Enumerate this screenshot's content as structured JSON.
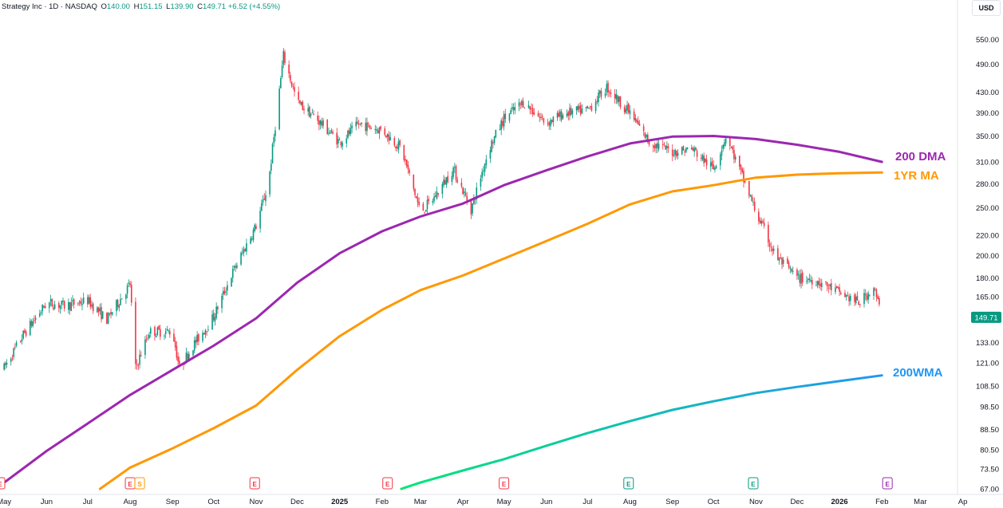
{
  "header": {
    "symbol": "Strategy Inc · 1D · NASDAQ",
    "o_label": "O",
    "o_value": "140.00",
    "h_label": "H",
    "h_value": "151.15",
    "l_label": "L",
    "l_value": "139.90",
    "c_label": "C",
    "c_value": "149.71",
    "change": "+6.52 (+4.55%)"
  },
  "currency_button": "USD",
  "colors": {
    "up": "#089981",
    "down": "#f23645",
    "dma200": "#9c27b0",
    "ma1yr": "#ff9800",
    "wma200_start": "#00e676",
    "wma200_end": "#2196f3",
    "price_tag": "#089981"
  },
  "chart_data": {
    "type": "line",
    "title": "Strategy Inc · 1D · NASDAQ",
    "y_scale": "log",
    "ylim": [
      67,
      570
    ],
    "y_ticks": [
      "550.00",
      "490.00",
      "430.00",
      "390.00",
      "350.00",
      "310.00",
      "280.00",
      "250.00",
      "220.00",
      "200.00",
      "180.00",
      "165.00",
      "149.71",
      "133.00",
      "121.00",
      "108.50",
      "98.50",
      "88.50",
      "80.50",
      "73.50",
      "67.00"
    ],
    "x_ticks": [
      "May",
      "Jun",
      "Jul",
      "Aug",
      "Sep",
      "Oct",
      "Nov",
      "Dec",
      "2025",
      "Feb",
      "Mar",
      "Apr",
      "May",
      "Jun",
      "Jul",
      "Aug",
      "Sep",
      "Oct",
      "Nov",
      "Dec",
      "2026",
      "Feb",
      "Mar",
      "Ap"
    ],
    "last_price": "149.71",
    "price_series": {
      "name": "",
      "x": [
        "2024-05-01",
        "2024-05-15",
        "2024-06-01",
        "2024-06-15",
        "2024-07-01",
        "2024-07-15",
        "2024-08-01",
        "2024-08-05",
        "2024-08-15",
        "2024-09-01",
        "2024-09-06",
        "2024-09-15",
        "2024-10-01",
        "2024-10-15",
        "2024-11-01",
        "2024-11-10",
        "2024-11-21",
        "2024-12-01",
        "2024-12-15",
        "2025-01-01",
        "2025-01-15",
        "2025-02-01",
        "2025-02-15",
        "2025-03-01",
        "2025-03-10",
        "2025-03-25",
        "2025-04-07",
        "2025-04-20",
        "2025-05-01",
        "2025-05-15",
        "2025-06-01",
        "2025-06-15",
        "2025-07-01",
        "2025-07-15",
        "2025-08-01",
        "2025-08-15",
        "2025-09-01",
        "2025-09-15",
        "2025-10-01",
        "2025-10-10",
        "2025-10-15",
        "2025-11-01",
        "2025-11-15",
        "2025-12-01",
        "2025-12-15",
        "2026-01-01",
        "2026-01-15",
        "2026-01-26",
        "2026-02-01"
      ],
      "values": [
        118,
        138,
        160,
        158,
        162,
        148,
        175,
        118,
        140,
        140,
        118,
        130,
        150,
        185,
        230,
        280,
        510,
        410,
        380,
        340,
        370,
        360,
        330,
        245,
        260,
        300,
        248,
        330,
        380,
        410,
        372,
        390,
        395,
        440,
        390,
        340,
        325,
        330,
        300,
        350,
        325,
        245,
        200,
        180,
        178,
        168,
        160,
        172,
        149.71
      ]
    },
    "series": [
      {
        "name": "200 DMA",
        "x": [
          "2024-04-28",
          "2024-06-01",
          "2024-07-01",
          "2024-08-01",
          "2024-09-01",
          "2024-10-01",
          "2024-11-01",
          "2024-12-01",
          "2025-01-01",
          "2025-02-01",
          "2025-03-01",
          "2025-04-01",
          "2025-05-01",
          "2025-06-01",
          "2025-07-01",
          "2025-08-01",
          "2025-09-01",
          "2025-10-01",
          "2025-11-01",
          "2025-12-01",
          "2026-01-01",
          "2026-02-01"
        ],
        "values": [
          68,
          80,
          91,
          104,
          117,
          131,
          149,
          176,
          202,
          224,
          240,
          255,
          278,
          298,
          318,
          338,
          349,
          350,
          345,
          336,
          325,
          310
        ]
      },
      {
        "name": "1YR MA",
        "x": [
          "2024-07-10",
          "2024-08-01",
          "2024-09-01",
          "2024-10-01",
          "2024-11-01",
          "2024-12-01",
          "2025-01-01",
          "2025-02-01",
          "2025-03-01",
          "2025-04-01",
          "2025-05-01",
          "2025-06-01",
          "2025-07-01",
          "2025-08-01",
          "2025-09-01",
          "2025-10-01",
          "2025-11-01",
          "2025-12-01",
          "2026-01-01",
          "2026-02-01"
        ],
        "values": [
          67,
          74,
          81,
          89,
          99,
          117,
          137,
          155,
          170,
          182,
          197,
          214,
          232,
          254,
          270,
          278,
          288,
          292,
          294,
          295
        ]
      },
      {
        "name": "200WMA",
        "x": [
          "2025-02-15",
          "2025-03-01",
          "2025-04-01",
          "2025-05-01",
          "2025-06-01",
          "2025-07-01",
          "2025-08-01",
          "2025-09-01",
          "2025-10-01",
          "2025-11-01",
          "2025-12-01",
          "2026-01-01",
          "2026-02-01"
        ],
        "values": [
          67,
          69,
          73,
          77,
          82,
          87,
          92,
          97,
          101,
          105,
          108,
          111,
          114
        ]
      }
    ],
    "ma_labels": [
      "200 DMA",
      "1YR MA",
      "200WMA"
    ],
    "events": [
      {
        "date": "2024-04-28",
        "letter": "E"
      },
      {
        "date": "2024-08-01",
        "letter": "E"
      },
      {
        "date": "2024-08-08",
        "letter": "S"
      },
      {
        "date": "2024-10-31",
        "letter": "E"
      },
      {
        "date": "2025-02-05",
        "letter": "E"
      },
      {
        "date": "2025-05-01",
        "letter": "E"
      },
      {
        "date": "2025-07-31",
        "letter": "E"
      },
      {
        "date": "2025-10-30",
        "letter": "E"
      },
      {
        "date": "2026-02-05",
        "letter": "E"
      }
    ]
  }
}
